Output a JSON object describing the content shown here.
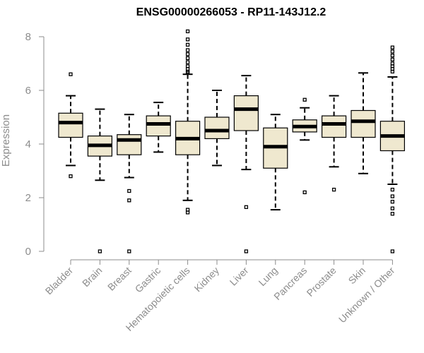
{
  "chart_data": {
    "type": "boxplot",
    "title": "ENSG00000266053 - RP11-143J12.2",
    "xlabel": "",
    "ylabel": "Expression",
    "ylim": [
      0,
      8
    ],
    "yticks": [
      0,
      2,
      4,
      6,
      8
    ],
    "grid": false,
    "box_fill": "#efe8cf",
    "categories": [
      "Bladder",
      "Brain",
      "Breast",
      "Gastric",
      "Hematopoietic cells",
      "Kidney",
      "Liver",
      "Lung",
      "Pancreas",
      "Prostate",
      "Skin",
      "Unknown / Other"
    ],
    "boxes": [
      {
        "whisker_low": 3.2,
        "q1": 4.25,
        "median": 4.8,
        "q3": 5.15,
        "whisker_high": 5.8,
        "outliers": [
          6.6,
          2.8
        ]
      },
      {
        "whisker_low": 2.65,
        "q1": 3.55,
        "median": 3.95,
        "q3": 4.3,
        "whisker_high": 5.3,
        "outliers": [
          0.0
        ]
      },
      {
        "whisker_low": 2.75,
        "q1": 3.6,
        "median": 4.15,
        "q3": 4.35,
        "whisker_high": 5.1,
        "outliers": [
          2.25,
          1.9,
          0.0
        ]
      },
      {
        "whisker_low": 3.7,
        "q1": 4.3,
        "median": 4.75,
        "q3": 5.05,
        "whisker_high": 5.55,
        "outliers": []
      },
      {
        "whisker_low": 1.9,
        "q1": 3.6,
        "median": 4.2,
        "q3": 4.85,
        "whisker_high": 6.6,
        "outliers": [
          8.2,
          7.9,
          7.7,
          7.5,
          7.35,
          7.2,
          7.05,
          6.9,
          6.8,
          6.7,
          6.65,
          1.55,
          1.45
        ]
      },
      {
        "whisker_low": 3.2,
        "q1": 4.2,
        "median": 4.5,
        "q3": 5.0,
        "whisker_high": 6.0,
        "outliers": []
      },
      {
        "whisker_low": 3.05,
        "q1": 4.5,
        "median": 5.3,
        "q3": 5.8,
        "whisker_high": 6.55,
        "outliers": [
          1.65,
          0.0
        ]
      },
      {
        "whisker_low": 1.55,
        "q1": 3.1,
        "median": 3.9,
        "q3": 4.6,
        "whisker_high": 5.1,
        "outliers": []
      },
      {
        "whisker_low": 4.15,
        "q1": 4.45,
        "median": 4.65,
        "q3": 4.9,
        "whisker_high": 5.35,
        "outliers": [
          5.65,
          2.2
        ]
      },
      {
        "whisker_low": 3.15,
        "q1": 4.25,
        "median": 4.75,
        "q3": 5.05,
        "whisker_high": 5.8,
        "outliers": [
          2.3
        ]
      },
      {
        "whisker_low": 2.9,
        "q1": 4.25,
        "median": 4.85,
        "q3": 5.25,
        "whisker_high": 6.65,
        "outliers": []
      },
      {
        "whisker_low": 2.5,
        "q1": 3.75,
        "median": 4.3,
        "q3": 4.85,
        "whisker_high": 6.5,
        "outliers": [
          7.6,
          7.45,
          7.3,
          7.15,
          7.0,
          6.9,
          6.8,
          6.7,
          2.3,
          2.05,
          1.85,
          1.6,
          1.4,
          0.0
        ]
      }
    ]
  }
}
